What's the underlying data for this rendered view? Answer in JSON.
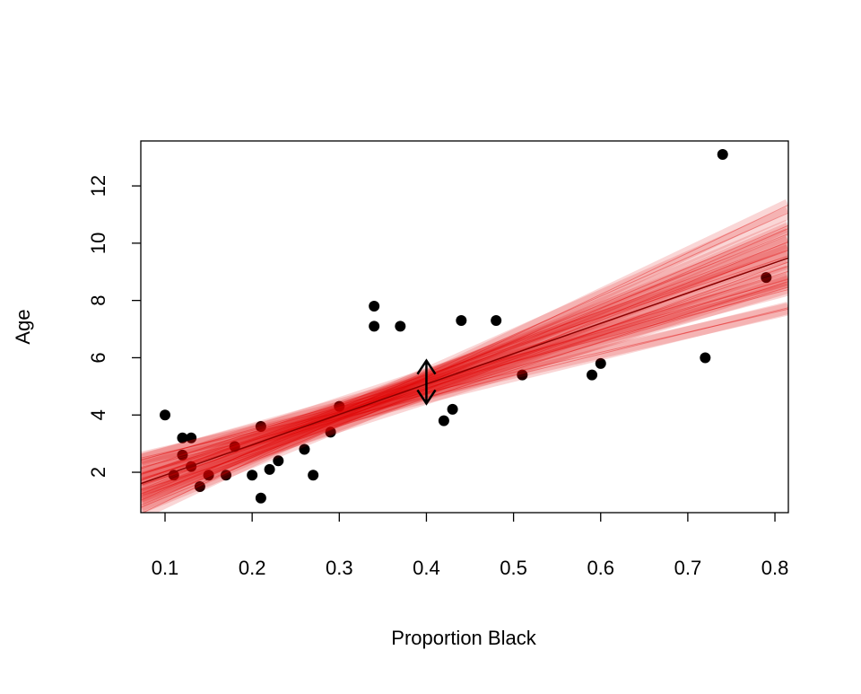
{
  "chart_data": {
    "type": "scatter",
    "xlabel": "Proportion Black",
    "ylabel": "Age",
    "x": [
      0.1,
      0.11,
      0.12,
      0.12,
      0.13,
      0.13,
      0.14,
      0.15,
      0.17,
      0.18,
      0.2,
      0.21,
      0.21,
      0.22,
      0.23,
      0.26,
      0.27,
      0.29,
      0.3,
      0.34,
      0.34,
      0.37,
      0.42,
      0.43,
      0.44,
      0.48,
      0.51,
      0.59,
      0.6,
      0.72,
      0.74,
      0.79
    ],
    "values": [
      4.0,
      1.9,
      3.2,
      2.6,
      3.2,
      2.2,
      1.5,
      1.9,
      1.9,
      2.9,
      1.9,
      3.6,
      1.1,
      2.1,
      2.4,
      2.8,
      1.9,
      3.4,
      4.3,
      7.8,
      7.1,
      7.1,
      3.8,
      4.2,
      7.3,
      7.3,
      5.4,
      5.4,
      5.8,
      6.0,
      13.1,
      8.8
    ],
    "color": "#000000",
    "fit_lines": [
      {
        "intercept": 1.86,
        "slope": 8.0
      },
      {
        "intercept": -0.09,
        "slope": 13.0
      },
      {
        "intercept": 1.13,
        "slope": 9.0
      },
      {
        "intercept": 0.54,
        "slope": 12.0
      },
      {
        "intercept": 0.37,
        "slope": 11.0
      },
      {
        "intercept": 1.4,
        "slope": 10.0
      },
      {
        "intercept": -0.49,
        "slope": 14.5
      },
      {
        "intercept": 1.99,
        "slope": 7.0
      },
      {
        "intercept": 1.27,
        "slope": 9.5
      },
      {
        "intercept": 0.41,
        "slope": 11.5
      },
      {
        "intercept": -0.13,
        "slope": 12.5
      },
      {
        "intercept": 1.8,
        "slope": 8.5
      },
      {
        "intercept": 0.8,
        "slope": 10.3
      },
      {
        "intercept": 0.05,
        "slope": 13.5
      },
      {
        "intercept": 0.67,
        "slope": 9.8
      },
      {
        "intercept": 0.9,
        "slope": 11.2
      },
      {
        "intercept": 1.63,
        "slope": 7.5
      },
      {
        "intercept": 0.18,
        "slope": 12.8
      },
      {
        "intercept": 0.94,
        "slope": 10.8
      },
      {
        "intercept": 1.26,
        "slope": 9.2
      }
    ],
    "fit_color": "#e00000",
    "mean_line": {
      "intercept": 0.84,
      "slope": 10.6,
      "color": "#8b0000"
    },
    "arrow": {
      "x": 0.4,
      "y": [
        4.4,
        5.9
      ]
    },
    "xlim": [
      0.0722,
      0.8154
    ],
    "ylim": [
      0.59,
      13.57
    ],
    "xticks": [
      0.1,
      0.2,
      0.3,
      0.4,
      0.5,
      0.6,
      0.7,
      0.8
    ],
    "yticks": [
      2,
      4,
      6,
      8,
      10,
      12
    ],
    "grid": false
  }
}
